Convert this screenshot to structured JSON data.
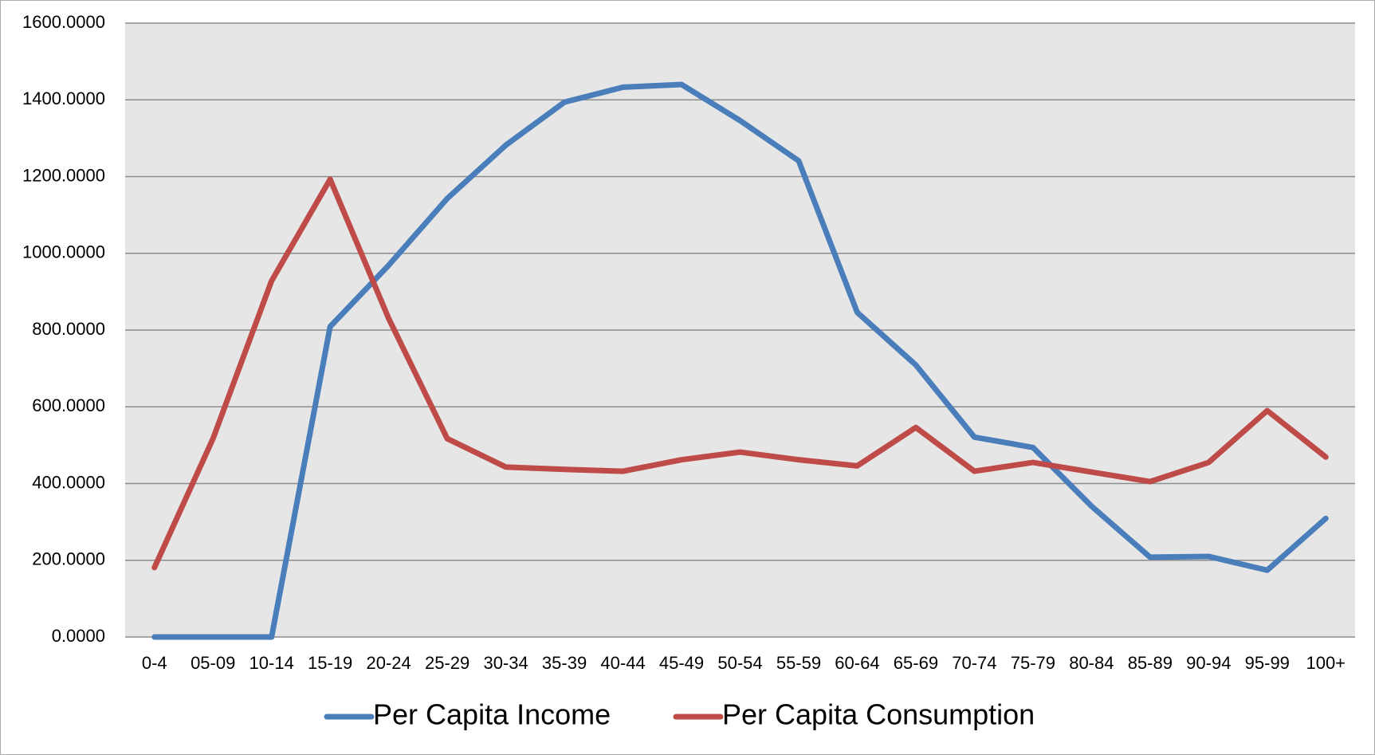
{
  "chart_data": {
    "type": "line",
    "categories": [
      "0-4",
      "05-09",
      "10-14",
      "15-19",
      "20-24",
      "25-29",
      "30-34",
      "35-39",
      "40-44",
      "45-49",
      "50-54",
      "55-59",
      "60-64",
      "65-69",
      "70-74",
      "75-79",
      "80-84",
      "85-89",
      "90-94",
      "95-99",
      "100+"
    ],
    "series": [
      {
        "name": "Per Capita Income",
        "color": "#4a7ebb",
        "values": [
          0,
          0,
          0,
          809,
          969,
          1143,
          1282,
          1394,
          1433,
          1440,
          1346,
          1241,
          846,
          709,
          521,
          494,
          341,
          208,
          210,
          174,
          309
        ]
      },
      {
        "name": "Per Capita Consumption",
        "color": "#be4b48",
        "values": [
          181,
          517,
          928,
          1193,
          830,
          517,
          443,
          437,
          432,
          462,
          482,
          462,
          446,
          546,
          432,
          455,
          430,
          405,
          455,
          590,
          469
        ]
      }
    ],
    "ylim": [
      0,
      1600
    ],
    "yticks": [
      {
        "value": 0,
        "label": "0.0000"
      },
      {
        "value": 200,
        "label": "200.0000"
      },
      {
        "value": 400,
        "label": "400.0000"
      },
      {
        "value": 600,
        "label": "600.0000"
      },
      {
        "value": 800,
        "label": "800.0000"
      },
      {
        "value": 1000,
        "label": "1000.0000"
      },
      {
        "value": 1200,
        "label": "1200.0000"
      },
      {
        "value": 1400,
        "label": "1400.0000"
      },
      {
        "value": 1600,
        "label": "1600.0000"
      }
    ],
    "grid": true,
    "legend": "bottom"
  }
}
